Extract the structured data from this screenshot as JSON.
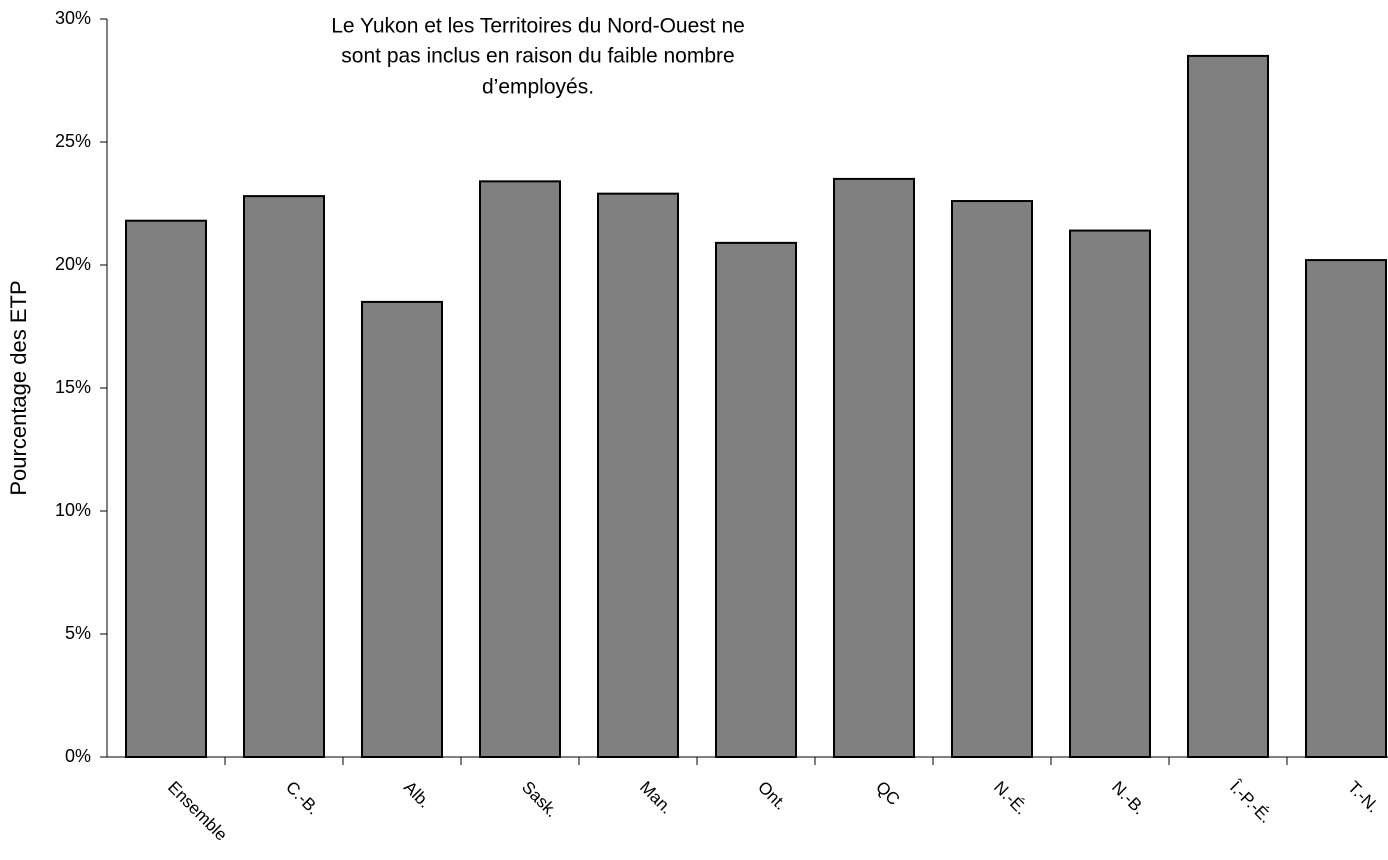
{
  "chart_data": {
    "type": "bar",
    "annotation": [
      "Le Yukon et les Territoires du Nord-Ouest ne",
      "sont pas inclus en raison du faible nombre",
      "d’employés."
    ],
    "y_label": "Pourcentage des ETP",
    "categories": [
      "Ensemble",
      "C.-B.",
      "Alb.",
      "Sask.",
      "Man.",
      "Ont.",
      "QC",
      "N.-É.",
      "N.-B.",
      "Î.-P.-É.",
      "T.-N."
    ],
    "values": [
      21.8,
      22.8,
      18.5,
      23.4,
      22.9,
      20.9,
      23.5,
      22.6,
      21.4,
      28.5,
      20.2
    ],
    "color": "#808080",
    "ylim": [
      0,
      30
    ],
    "yticks": [
      {
        "value": 0,
        "label": "0%"
      },
      {
        "value": 5,
        "label": "5%"
      },
      {
        "value": 10,
        "label": "10%"
      },
      {
        "value": 15,
        "label": "15%"
      },
      {
        "value": 20,
        "label": "20%"
      },
      {
        "value": 25,
        "label": "25%"
      },
      {
        "value": 30,
        "label": "30%"
      }
    ],
    "grid": false
  }
}
